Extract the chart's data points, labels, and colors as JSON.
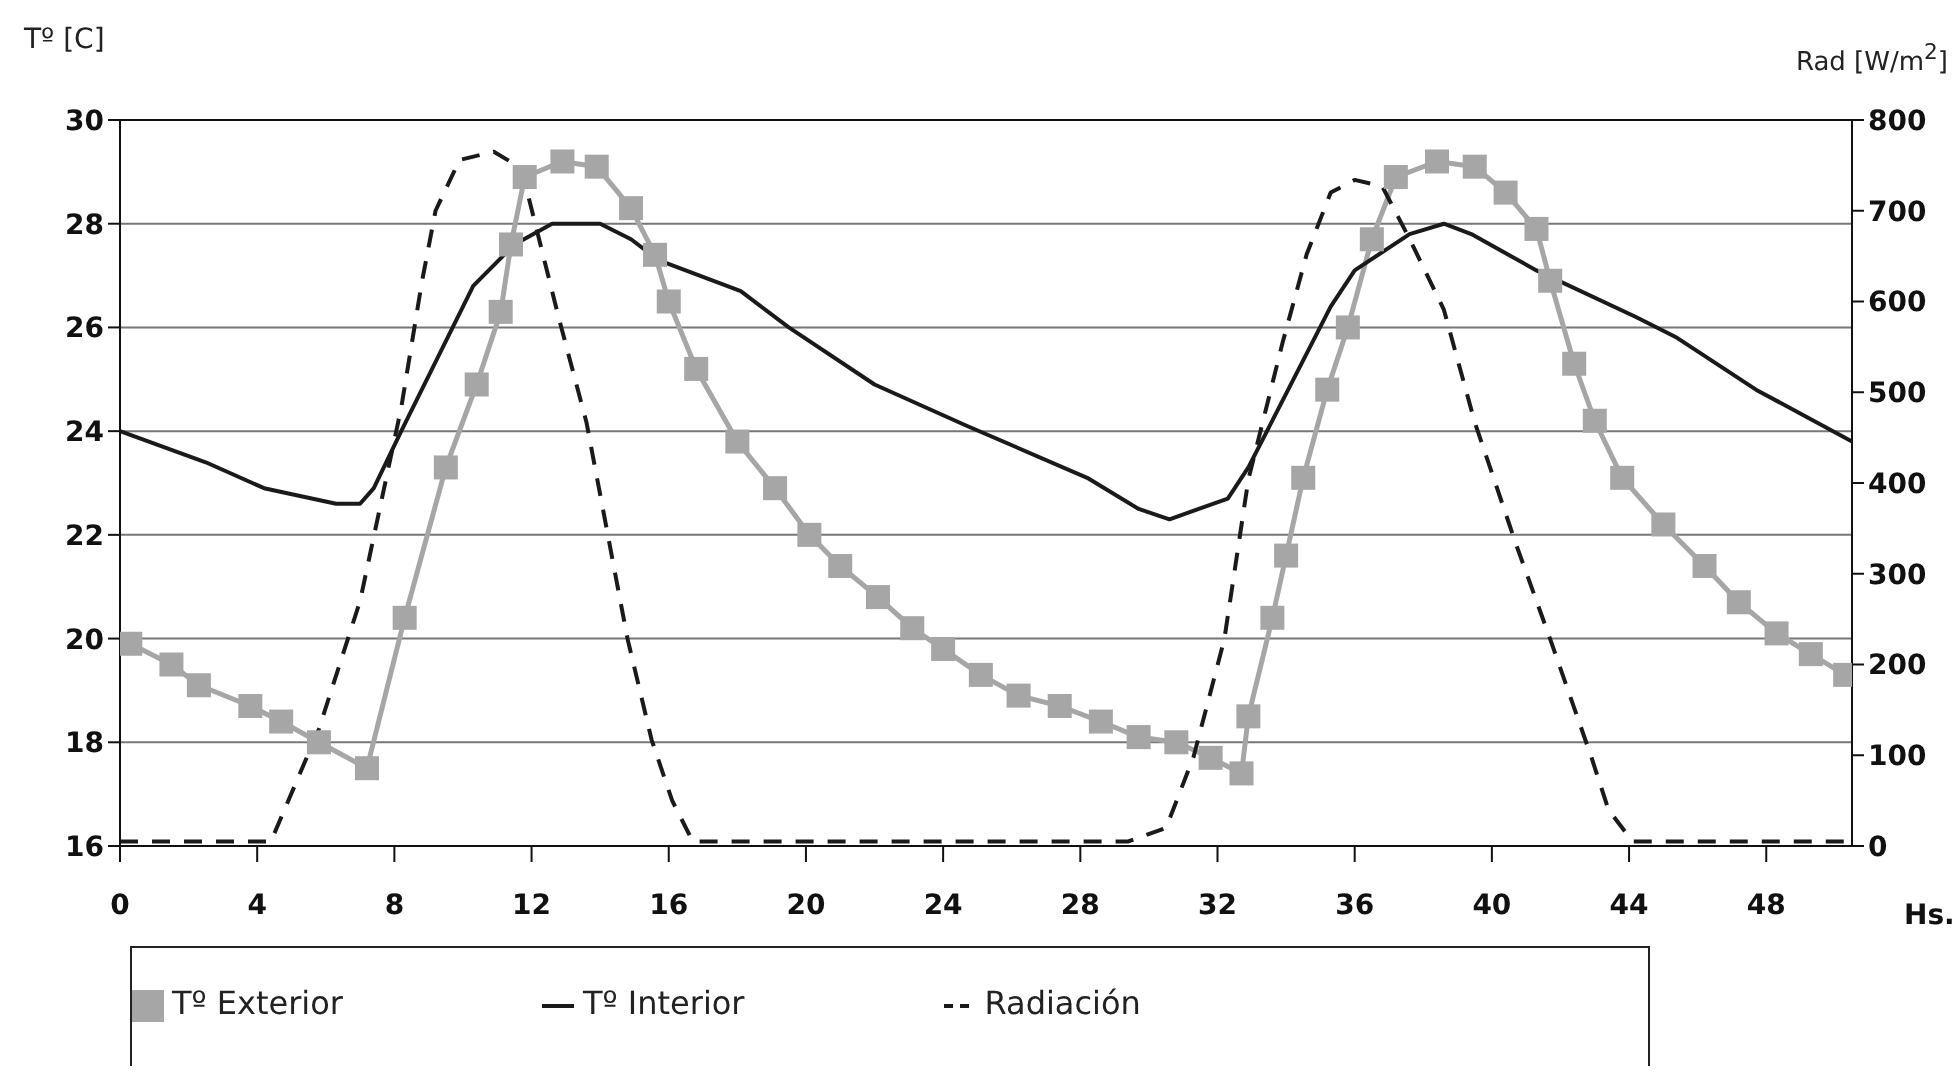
{
  "chart_data": {
    "type": "line",
    "xlabel": "Hs.",
    "ylabel": "Tº [C]",
    "y2label": "Rad [W/m$^{2}$]",
    "xlim": [
      0,
      50.5
    ],
    "xticks": [
      0,
      4,
      8,
      12,
      16,
      20,
      24,
      28,
      32,
      36,
      40,
      44,
      48
    ],
    "ylim": [
      16,
      30
    ],
    "yticks": [
      16,
      18,
      20,
      22,
      24,
      26,
      28,
      30
    ],
    "y2lim": [
      0,
      800
    ],
    "y2ticks": [
      0,
      100,
      200,
      300,
      400,
      500,
      600,
      700,
      800
    ],
    "grid": "y",
    "legend": "bottom",
    "series": [
      {
        "name": "Tº Exterior",
        "color": "#a6a6a6",
        "marker": "square",
        "line_style": "solid",
        "x": [
          0.3,
          1.5,
          2.3,
          3.8,
          4.7,
          5.8,
          7.2,
          8.3,
          9.5,
          10.4,
          11.1,
          11.4,
          11.8,
          12.9,
          13.9,
          14.9,
          15.6,
          16.0,
          16.8,
          18.0,
          19.1,
          20.1,
          21.0,
          22.1,
          23.1,
          24.0,
          25.1,
          26.2,
          27.4,
          28.6,
          29.7,
          30.8,
          31.8,
          32.7,
          32.9,
          33.6,
          34.0,
          34.5,
          35.2,
          35.8,
          36.5,
          37.2,
          38.4,
          39.5,
          40.4,
          41.3,
          41.7,
          42.4,
          43.0,
          43.8,
          45.0,
          46.2,
          47.2,
          48.3,
          49.3,
          50.3
        ],
        "values": [
          19.9,
          19.5,
          19.1,
          18.7,
          18.4,
          18.0,
          17.5,
          20.4,
          23.3,
          24.9,
          26.3,
          27.6,
          28.9,
          29.2,
          29.1,
          28.3,
          27.4,
          26.5,
          25.2,
          23.8,
          22.9,
          22.0,
          21.4,
          20.8,
          20.2,
          19.8,
          19.3,
          18.9,
          18.7,
          18.4,
          18.1,
          18.0,
          17.7,
          17.4,
          18.5,
          20.4,
          21.6,
          23.1,
          24.8,
          26.0,
          27.7,
          28.9,
          29.2,
          29.1,
          28.6,
          27.9,
          26.9,
          25.3,
          24.2,
          23.1,
          22.2,
          21.4,
          20.7,
          20.1,
          19.7,
          19.3
        ]
      },
      {
        "name": "Tº Interior",
        "color": "#1a1a1a",
        "marker": "none",
        "line_style": "solid",
        "x": [
          0,
          2.5,
          4.2,
          6.3,
          7.0,
          7.4,
          8.2,
          9.1,
          10.3,
          11.5,
          12.6,
          14.0,
          14.9,
          15.7,
          18.1,
          19.5,
          22.0,
          24.7,
          28.2,
          29.7,
          30.6,
          32.3,
          32.9,
          35.3,
          36.0,
          37.6,
          38.6,
          39.4,
          41.3,
          44.2,
          45.4,
          47.7,
          50.5
        ],
        "values": [
          24.0,
          23.4,
          22.9,
          22.6,
          22.6,
          22.9,
          24.0,
          25.2,
          26.8,
          27.6,
          28.0,
          28.0,
          27.7,
          27.3,
          26.7,
          26.0,
          24.9,
          24.1,
          23.1,
          22.5,
          22.3,
          22.7,
          23.3,
          26.4,
          27.1,
          27.8,
          28.0,
          27.8,
          27.1,
          26.2,
          25.8,
          24.8,
          23.8
        ]
      },
      {
        "name": "Radiación",
        "color": "#1a1a1a",
        "marker": "none",
        "line_style": "dashed",
        "axis": "y2",
        "x": [
          0,
          4.4,
          5.8,
          7.0,
          8.2,
          8.8,
          9.2,
          9.9,
          10.9,
          11.7,
          12.8,
          13.6,
          14.8,
          15.5,
          16.1,
          16.7,
          29.4,
          30.5,
          31.3,
          32.2,
          32.9,
          33.9,
          34.6,
          35.3,
          36.0,
          36.8,
          37.6,
          38.6,
          39.5,
          40.7,
          41.7,
          42.9,
          43.4,
          44.1,
          50.5
        ],
        "values": [
          5,
          5,
          129,
          270,
          483,
          621,
          700,
          756,
          765,
          747,
          581,
          467,
          228,
          117,
          50,
          5,
          5,
          20,
          98,
          228,
          404,
          555,
          652,
          720,
          734,
          727,
          669,
          591,
          467,
          333,
          228,
          98,
          40,
          5,
          5
        ]
      }
    ]
  }
}
